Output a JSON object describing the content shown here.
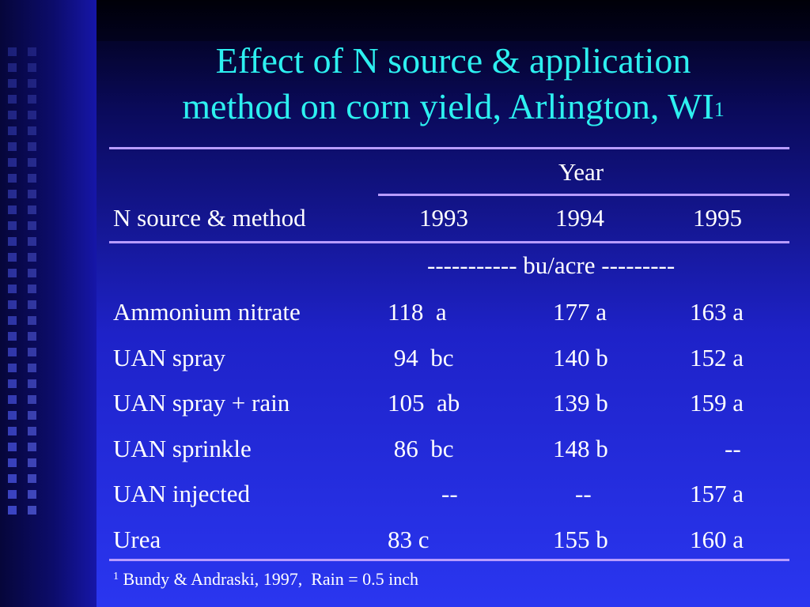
{
  "slide": {
    "title_line1": "Effect of N source & application",
    "title_line2": "method on corn yield, Arlington, WI",
    "title_sup": "1"
  },
  "table": {
    "year_label": "Year",
    "row_header": "N source & method",
    "years": [
      "1993",
      "1994",
      "1995"
    ],
    "unit_label": "----------- bu/acre ---------",
    "rows": [
      {
        "label": "Ammonium nitrate",
        "y1993": "118  a",
        "y1994": "177 a",
        "y1995": "163 a"
      },
      {
        "label": "UAN spray",
        "y1993": " 94  bc",
        "y1994": "140 b",
        "y1995": "152 a"
      },
      {
        "label": "UAN spray + rain",
        "y1993": "105  ab",
        "y1994": "139 b",
        "y1995": "159 a"
      },
      {
        "label": "UAN sprinkle",
        "y1993": " 86  bc",
        "y1994": "148 b",
        "y1995": "--"
      },
      {
        "label": "UAN injected",
        "y1993": "--",
        "y1994": "--",
        "y1995": "157 a"
      },
      {
        "label": "Urea",
        "y1993": "83 c",
        "y1994": "155 b",
        "y1995": "160 a"
      }
    ]
  },
  "footnote": {
    "sup": "1",
    "text": " Bundy & Andraski, 1997,  Rain = 0.5 inch"
  },
  "colors": {
    "title": "#2df0f0",
    "rule": "#b89cff",
    "text": "#ffffff"
  }
}
